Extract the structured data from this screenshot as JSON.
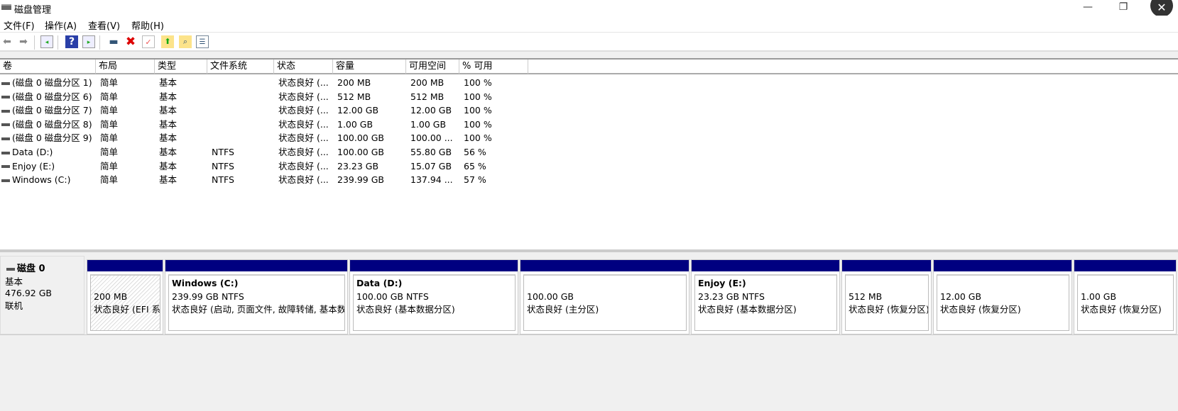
{
  "window": {
    "title": "磁盘管理",
    "minimize": "—",
    "restore": "❐",
    "close": "✕"
  },
  "menu": [
    "文件(F)",
    "操作(A)",
    "查看(V)",
    "帮助(H)"
  ],
  "toolbar": [
    "back-icon",
    "forward-icon",
    "console-tree-icon",
    "help-icon",
    "action-pane-icon",
    "connect-disk-icon",
    "delete-icon",
    "check-icon",
    "up-folder-icon",
    "search-folder-icon",
    "properties-list-icon"
  ],
  "table": {
    "headers": [
      "卷",
      "布局",
      "类型",
      "文件系统",
      "状态",
      "容量",
      "可用空间",
      "% 可用"
    ],
    "rows": [
      [
        "(磁盘 0 磁盘分区 1)",
        "简单",
        "基本",
        "",
        "状态良好 (...",
        "200 MB",
        "200 MB",
        "100 %"
      ],
      [
        "(磁盘 0 磁盘分区 6)",
        "简单",
        "基本",
        "",
        "状态良好 (...",
        "512 MB",
        "512 MB",
        "100 %"
      ],
      [
        "(磁盘 0 磁盘分区 7)",
        "简单",
        "基本",
        "",
        "状态良好 (...",
        "12.00 GB",
        "12.00 GB",
        "100 %"
      ],
      [
        "(磁盘 0 磁盘分区 8)",
        "简单",
        "基本",
        "",
        "状态良好 (...",
        "1.00 GB",
        "1.00 GB",
        "100 %"
      ],
      [
        "(磁盘 0 磁盘分区 9)",
        "简单",
        "基本",
        "",
        "状态良好 (...",
        "100.00 GB",
        "100.00 ...",
        "100 %"
      ],
      [
        "Data (D:)",
        "简单",
        "基本",
        "NTFS",
        "状态良好 (...",
        "100.00 GB",
        "55.80 GB",
        "56 %"
      ],
      [
        "Enjoy (E:)",
        "简单",
        "基本",
        "NTFS",
        "状态良好 (...",
        "23.23 GB",
        "15.07 GB",
        "65 %"
      ],
      [
        "Windows (C:)",
        "简单",
        "基本",
        "NTFS",
        "状态良好 (...",
        "239.99 GB",
        "137.94 ...",
        "57 %"
      ]
    ]
  },
  "disk": {
    "name": "磁盘 0",
    "type": "基本",
    "size": "476.92 GB",
    "status": "联机"
  },
  "partitions": [
    {
      "name": "",
      "size": "200 MB",
      "status": "状态良好 (EFI 系统分区)"
    },
    {
      "name": "Windows  (C:)",
      "size": "239.99 GB NTFS",
      "status": "状态良好 (启动, 页面文件, 故障转储, 基本数据分区)"
    },
    {
      "name": "Data  (D:)",
      "size": "100.00 GB NTFS",
      "status": "状态良好 (基本数据分区)"
    },
    {
      "name": "",
      "size": "100.00 GB",
      "status": "状态良好 (主分区)"
    },
    {
      "name": "Enjoy  (E:)",
      "size": "23.23 GB NTFS",
      "status": "状态良好 (基本数据分区)"
    },
    {
      "name": "",
      "size": "512 MB",
      "status": "状态良好 (恢复分区)"
    },
    {
      "name": "",
      "size": "12.00 GB",
      "status": "状态良好 (恢复分区)"
    },
    {
      "name": "",
      "size": "1.00 GB",
      "status": "状态良好 (恢复分区)"
    }
  ],
  "colors": {
    "partition_bar": "#000080"
  }
}
